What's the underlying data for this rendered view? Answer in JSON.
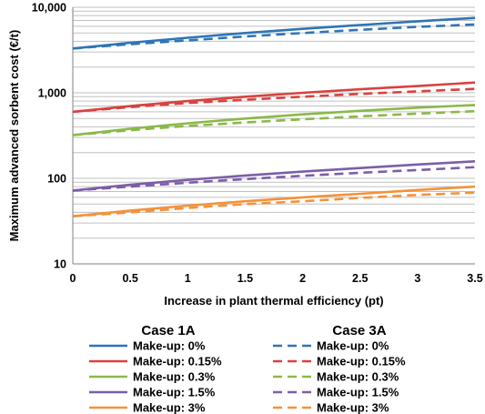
{
  "chart_data": {
    "type": "line",
    "title": "",
    "xlabel": "Increase in plant thermal efficiency (pt)",
    "ylabel": "Maximum advanced sorbent cost (€/t)",
    "x_ticks": [
      "0",
      "0.5",
      "1",
      "1.5",
      "2",
      "2.5",
      "3",
      "3.5"
    ],
    "x_tick_values": [
      0,
      0.5,
      1,
      1.5,
      2,
      2.5,
      3,
      3.5
    ],
    "y_ticks": [
      "10",
      "100",
      "1,000",
      "10,000"
    ],
    "y_tick_values": [
      10,
      100,
      1000,
      10000
    ],
    "xlim": [
      0,
      3.5
    ],
    "ylim": [
      10,
      10000
    ],
    "yscale": "log",
    "grid": "horizontal",
    "legend_position": "bottom",
    "x": [
      0,
      0.5,
      1,
      1.5,
      2,
      2.5,
      3,
      3.5
    ],
    "legend_groups": [
      {
        "title": "Case 1A",
        "dashed": false
      },
      {
        "title": "Case 3A",
        "dashed": true
      }
    ],
    "series": [
      {
        "name": "Make-up: 0%",
        "group": "Case 1A",
        "color": "#2e75b6",
        "dashed": false,
        "values": [
          3300,
          3850,
          4400,
          5000,
          5600,
          6200,
          6850,
          7500
        ]
      },
      {
        "name": "Make-up: 0.15%",
        "group": "Case 1A",
        "color": "#d9423e",
        "dashed": false,
        "values": [
          600,
          700,
          800,
          900,
          1000,
          1100,
          1200,
          1320
        ]
      },
      {
        "name": "Make-up: 0.3%",
        "group": "Case 1A",
        "color": "#8ab947",
        "dashed": false,
        "values": [
          320,
          380,
          440,
          500,
          560,
          615,
          670,
          720
        ]
      },
      {
        "name": "Make-up: 1.5%",
        "group": "Case 1A",
        "color": "#7b5ea7",
        "dashed": false,
        "values": [
          72,
          84,
          96,
          108,
          120,
          132,
          145,
          158
        ]
      },
      {
        "name": "Make-up: 3%",
        "group": "Case 1A",
        "color": "#f4923a",
        "dashed": false,
        "values": [
          36,
          42,
          48,
          54,
          60,
          66,
          73,
          80
        ]
      },
      {
        "name": "Make-up: 0%",
        "group": "Case 3A",
        "color": "#2e75b6",
        "dashed": true,
        "values": [
          3300,
          3700,
          4100,
          4550,
          5000,
          5450,
          5900,
          6300
        ]
      },
      {
        "name": "Make-up: 0.15%",
        "group": "Case 3A",
        "color": "#d9423e",
        "dashed": true,
        "values": [
          600,
          680,
          760,
          830,
          900,
          970,
          1040,
          1110
        ]
      },
      {
        "name": "Make-up: 0.3%",
        "group": "Case 3A",
        "color": "#8ab947",
        "dashed": true,
        "values": [
          320,
          365,
          410,
          450,
          490,
          530,
          570,
          610
        ]
      },
      {
        "name": "Make-up: 1.5%",
        "group": "Case 3A",
        "color": "#7b5ea7",
        "dashed": true,
        "values": [
          72,
          80,
          89,
          98,
          107,
          116,
          125,
          135
        ]
      },
      {
        "name": "Make-up: 3%",
        "group": "Case 3A",
        "color": "#f4923a",
        "dashed": true,
        "values": [
          36,
          40,
          45,
          50,
          54,
          59,
          64,
          68
        ]
      }
    ]
  }
}
